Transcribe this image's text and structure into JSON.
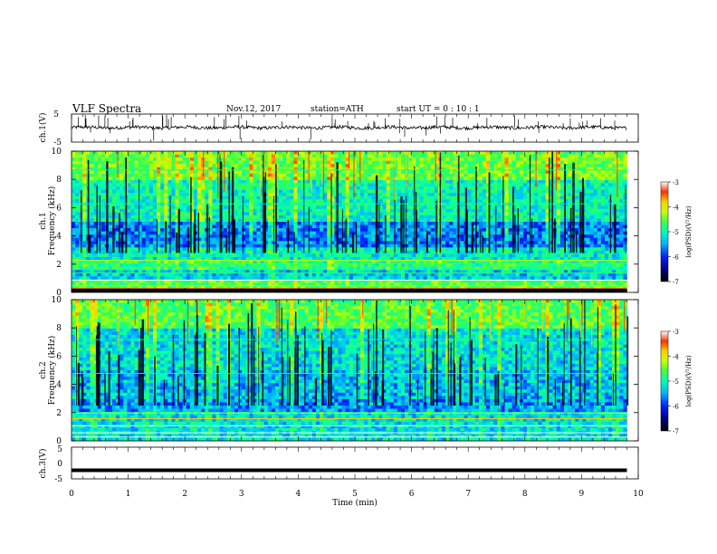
{
  "header": {
    "title": "VLF  Spectra",
    "date": "Nov.12, 2017",
    "station": "station=ATH",
    "start": "start  UT  =    0  : 10 : 1"
  },
  "chart_data": [
    {
      "type": "line",
      "ylabel": "ch.1(V)",
      "ylim": [
        -5,
        5
      ],
      "yticks": [
        "5",
        "-5"
      ],
      "xlim": [
        0,
        10
      ],
      "data_end_min": 9.8,
      "baseline_v": 0.2,
      "note_trace": "noisy waveform near 0 V with sparse impulsive spikes"
    },
    {
      "type": "heatmap",
      "ylabel": "ch.1\nFrequency  (kHz)",
      "ylim": [
        0,
        10
      ],
      "yticks": [
        "0",
        "2",
        "4",
        "6",
        "8",
        "10"
      ],
      "xlim": [
        0,
        10
      ],
      "colorbar": {
        "label": "log(PSD)(V²/Hz)",
        "range": [
          -7,
          -3
        ],
        "ticks": [
          "-3",
          "-4",
          "-5",
          "-6",
          "-7"
        ]
      }
    },
    {
      "type": "heatmap",
      "ylabel": "ch.2\nFrequency  (kHz)",
      "ylim": [
        0,
        10
      ],
      "yticks": [
        "0",
        "2",
        "4",
        "6",
        "8",
        "10"
      ],
      "xlim": [
        0,
        10
      ],
      "colorbar": {
        "label": "log(PSD)(V²/Hz)",
        "range": [
          -7,
          -3
        ],
        "ticks": [
          "-3",
          "-4",
          "-5",
          "-6",
          "-7"
        ]
      }
    },
    {
      "type": "line",
      "ylabel": "ch.3(V)",
      "ylim": [
        -5,
        5
      ],
      "yticks": [
        "5",
        "0",
        "-5"
      ],
      "xlim": [
        0,
        10
      ],
      "data_end_min": 9.8,
      "baseline_v": -2.3,
      "xlabel": "Time  (min)",
      "xticks": [
        "0",
        "1",
        "2",
        "3",
        "4",
        "5",
        "6",
        "7",
        "8",
        "9",
        "10"
      ]
    }
  ],
  "colors": {
    "colormap": [
      "#000000",
      "#000080",
      "#0020ff",
      "#00b4ff",
      "#00ffb4",
      "#40ff40",
      "#c8ff00",
      "#ffd000",
      "#ff3000",
      "#ffffff"
    ],
    "trace": "#000000"
  }
}
